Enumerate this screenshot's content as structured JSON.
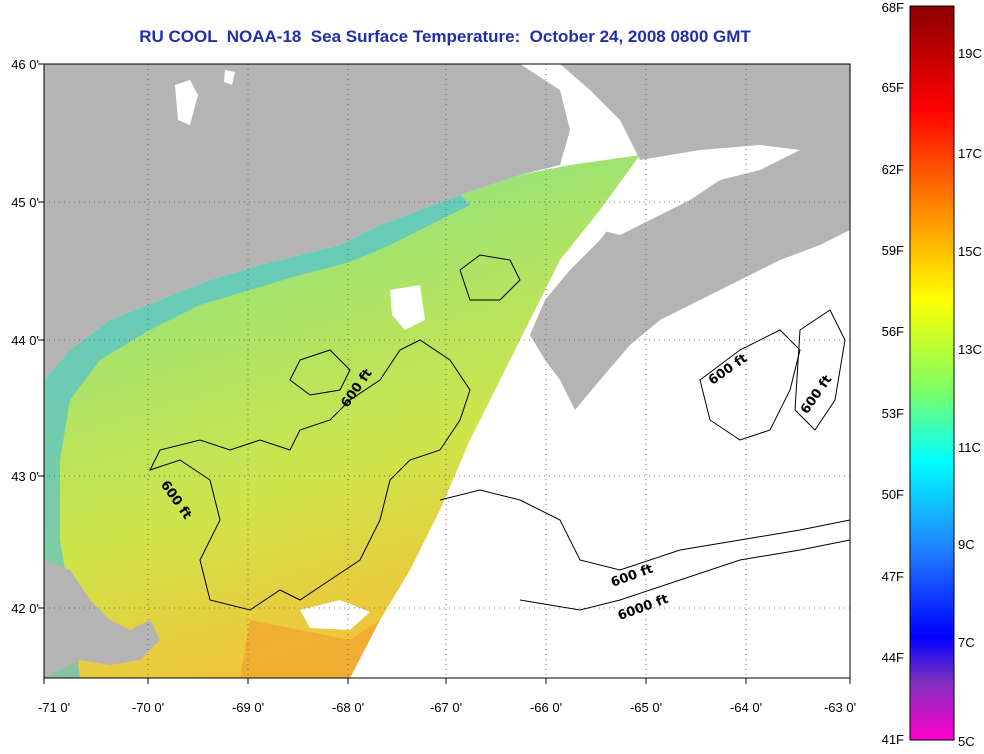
{
  "title": "RU COOL  NOAA-18  Sea Surface Temperature:  October 24, 2008 0800 GMT",
  "lat_labels": [
    "46 0'",
    "45 0'",
    "44 0'",
    "43 0'",
    "42 0'"
  ],
  "lon_labels": [
    "-71 0'",
    "-70 0'",
    "-69 0'",
    "-68 0'",
    "-67 0'",
    "-66 0'",
    "-65 0'",
    "-64 0'",
    "-63 0'"
  ],
  "colorbar": {
    "fahrenheit": [
      "68F",
      "65F",
      "62F",
      "59F",
      "56F",
      "53F",
      "50F",
      "47F",
      "44F",
      "41F"
    ],
    "celsius": [
      "19C",
      "17C",
      "15C",
      "13C",
      "11C",
      "9C",
      "7C",
      "5C"
    ]
  },
  "contour_labels": {
    "a": "600 ft",
    "b": "600 ft",
    "c": "600 ft",
    "d": "600 ft",
    "e": "600 ft",
    "f": "6000 ft"
  },
  "colors": {
    "title": "#1f2fae",
    "land": "#b4b4b4",
    "water_mid": "#9fe27a",
    "water_warm": "#f0d83a",
    "coast_cold": "#2aa7ff"
  }
}
